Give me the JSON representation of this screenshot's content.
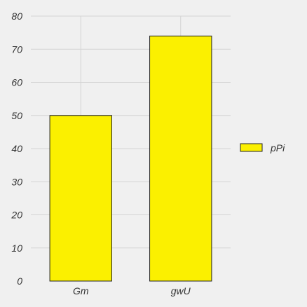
{
  "chart_data": {
    "type": "bar",
    "title": "",
    "xlabel": "",
    "ylabel": "",
    "categories": [
      "Gm",
      "gwU"
    ],
    "series": [
      {
        "name": "pPi",
        "values": [
          50,
          74
        ],
        "color": "#fbf000"
      }
    ],
    "ylim": [
      0,
      80
    ],
    "y_ticks": [
      "0",
      "10",
      "20",
      "30",
      "40",
      "50",
      "60",
      "70",
      "80"
    ],
    "grid": true,
    "legend": {
      "position": "right"
    },
    "colors": {
      "background": "#f0f0f0",
      "grid": "#d4d4d4",
      "bar_border": "#222222",
      "text": "#333333"
    }
  }
}
